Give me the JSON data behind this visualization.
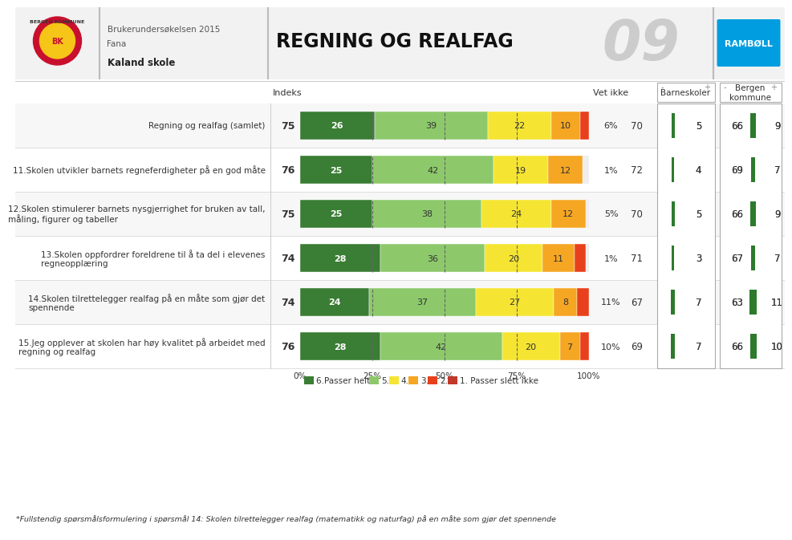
{
  "title": "REGNING OG REALFAG",
  "subtitle1": "Brukerundersøkelsen 2015",
  "subtitle2": "Fana",
  "subtitle3": "Kaland skole",
  "page_num": "09",
  "rows": [
    {
      "label": "Regning og realfag (samlet)",
      "indeks": 75,
      "bars": [
        26,
        39,
        22,
        10,
        3
      ],
      "vet_ikke": "6%",
      "indeks_val": 70,
      "barneskoler_val": 5,
      "barneskoler_bar": 5,
      "bergen_val": 66,
      "bergen_bar": 9
    },
    {
      "label": "11.Skolen utvikler barnets regneferdigheter på en god måte",
      "indeks": 76,
      "bars": [
        25,
        42,
        19,
        12,
        0
      ],
      "vet_ikke": "1%",
      "indeks_val": 72,
      "barneskoler_val": 4,
      "barneskoler_bar": 4,
      "bergen_val": 69,
      "bergen_bar": 7
    },
    {
      "label": "12.Skolen stimulerer barnets nysgjerrighet for bruken av tall,\nmåling, figurer og tabeller",
      "indeks": 75,
      "bars": [
        25,
        38,
        24,
        12,
        0
      ],
      "vet_ikke": "5%",
      "indeks_val": 70,
      "barneskoler_val": 5,
      "barneskoler_bar": 5,
      "bergen_val": 66,
      "bergen_bar": 9
    },
    {
      "label": "13.Skolen oppfordrer foreldrene til å ta del i elevenes\nregneopplæring",
      "indeks": 74,
      "bars": [
        28,
        36,
        20,
        11,
        4
      ],
      "vet_ikke": "1%",
      "indeks_val": 71,
      "barneskoler_val": 3,
      "barneskoler_bar": 3,
      "bergen_val": 67,
      "bergen_bar": 7
    },
    {
      "label": "14.Skolen tilrettelegger realfag på en måte som gjør det\nspennende",
      "indeks": 74,
      "bars": [
        24,
        37,
        27,
        8,
        4
      ],
      "vet_ikke": "11%",
      "indeks_val": 67,
      "barneskoler_val": 7,
      "barneskoler_bar": 7,
      "bergen_val": 63,
      "bergen_bar": 11
    },
    {
      "label": "15.Jeg opplever at skolen har høy kvalitet på arbeidet med\nregning og realfag",
      "indeks": 76,
      "bars": [
        28,
        42,
        20,
        7,
        3
      ],
      "vet_ikke": "10%",
      "indeks_val": 69,
      "barneskoler_val": 7,
      "barneskoler_bar": 7,
      "bergen_val": 66,
      "bergen_bar": 10
    }
  ],
  "bar_colors": [
    "#3a7d34",
    "#8dc96b",
    "#f5e532",
    "#f5a623",
    "#e8401c",
    "#c0392b"
  ],
  "legend_labels": [
    "6.Passer helt",
    "5.",
    "4.",
    "3.",
    "2.",
    "1. Passer slett ikke"
  ],
  "footnote": "*Fullstendig spørsmålsformulering i spørsmål 14: Skolen tilrettelegger realfag (matematikk og naturfag) på en måte som gjør det spennende",
  "indeks_header": "Indeks",
  "vet_ikke_header": "Vet ikke",
  "barneskoler_header": "Barneskoler",
  "bergen_header": "Bergen\nkommune",
  "bg_color": "#ffffff",
  "header_bg": "#f0f0f0"
}
